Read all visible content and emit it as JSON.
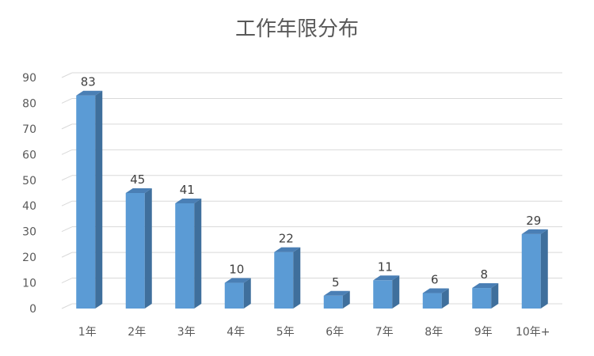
{
  "chart_data": {
    "type": "bar",
    "title": "工作年限分布",
    "categories": [
      "1年",
      "2年",
      "3年",
      "4年",
      "5年",
      "6年",
      "7年",
      "8年",
      "9年",
      "10年+"
    ],
    "values": [
      83,
      45,
      41,
      10,
      22,
      5,
      11,
      6,
      8,
      29
    ],
    "ylim": [
      0,
      90
    ],
    "yticks": [
      0,
      10,
      20,
      30,
      40,
      50,
      60,
      70,
      80,
      90
    ],
    "grid": true,
    "legend": "none",
    "colors": {
      "bar_front": "#5b9bd5",
      "bar_side": "#3f6f9c",
      "bar_top": "#4a7fb5",
      "grid": "#d9d9d9"
    }
  }
}
